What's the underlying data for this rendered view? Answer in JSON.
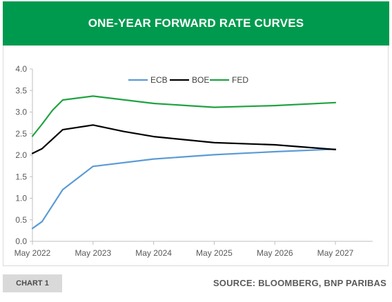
{
  "header": {
    "title": "ONE-YEAR FORWARD RATE CURVES",
    "color": "#009a4e"
  },
  "footer": {
    "tag": "CHART 1",
    "source": "SOURCE: BLOOMBERG, BNP PARIBAS"
  },
  "chart_data": {
    "type": "line",
    "title": "ONE-YEAR FORWARD RATE CURVES",
    "xlabel": "",
    "ylabel": "",
    "ylim": [
      0,
      4
    ],
    "yticks": [
      "0.0",
      "0.5",
      "1.0",
      "1.5",
      "2.0",
      "2.5",
      "3.0",
      "3.5",
      "4.0"
    ],
    "xticks": [
      "May 2022",
      "May 2023",
      "May 2024",
      "May 2025",
      "May 2026",
      "May 2027"
    ],
    "x_range_years": [
      2022.42,
      2027.42
    ],
    "grid": false,
    "legend_position": "top",
    "series": [
      {
        "name": "ECB",
        "color": "#5b9bd5",
        "points": [
          [
            2022.42,
            0.3
          ],
          [
            2022.58,
            0.46
          ],
          [
            2022.92,
            1.2
          ],
          [
            2023.42,
            1.74
          ],
          [
            2024.42,
            1.91
          ],
          [
            2025.42,
            2.01
          ],
          [
            2026.42,
            2.08
          ],
          [
            2027.42,
            2.14
          ]
        ]
      },
      {
        "name": "BOE",
        "color": "#000000",
        "points": [
          [
            2022.42,
            2.04
          ],
          [
            2022.58,
            2.15
          ],
          [
            2022.92,
            2.59
          ],
          [
            2023.42,
            2.7
          ],
          [
            2023.92,
            2.55
          ],
          [
            2024.42,
            2.43
          ],
          [
            2025.42,
            2.29
          ],
          [
            2026.42,
            2.24
          ],
          [
            2027.42,
            2.13
          ]
        ]
      },
      {
        "name": "FED",
        "color": "#1fa23f",
        "points": [
          [
            2022.42,
            2.44
          ],
          [
            2022.58,
            2.72
          ],
          [
            2022.75,
            3.04
          ],
          [
            2022.92,
            3.28
          ],
          [
            2023.42,
            3.37
          ],
          [
            2024.42,
            3.2
          ],
          [
            2025.42,
            3.11
          ],
          [
            2026.42,
            3.15
          ],
          [
            2027.42,
            3.22
          ]
        ]
      }
    ]
  }
}
